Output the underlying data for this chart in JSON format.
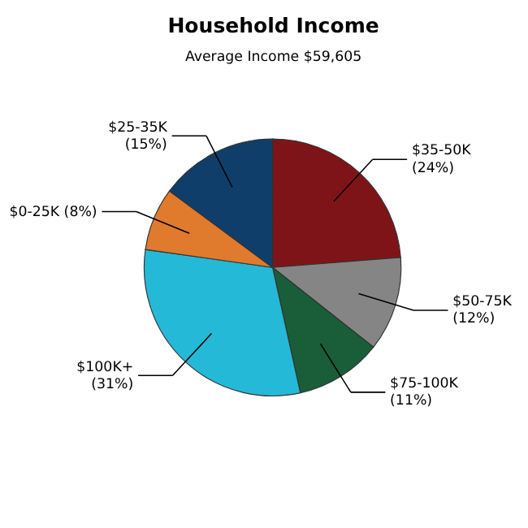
{
  "chart_data": {
    "type": "pie",
    "title": "Household Income",
    "subtitle": "Average Income  $59,605",
    "categories": [
      "$35-50K",
      "$50-75K",
      "$75-100K",
      "$100K+",
      "$0-25K",
      "$25-35K"
    ],
    "values": [
      24,
      12,
      11,
      31,
      8,
      15
    ],
    "value_labels": [
      "(24%)",
      "(12%)",
      "(11%)",
      "(31%)",
      "(8%)",
      "(15%)"
    ],
    "colors": [
      "#7f1418",
      "#858585",
      "#195e38",
      "#25b9d8",
      "#e07a2c",
      "#0f3e6a"
    ],
    "legend": false
  }
}
